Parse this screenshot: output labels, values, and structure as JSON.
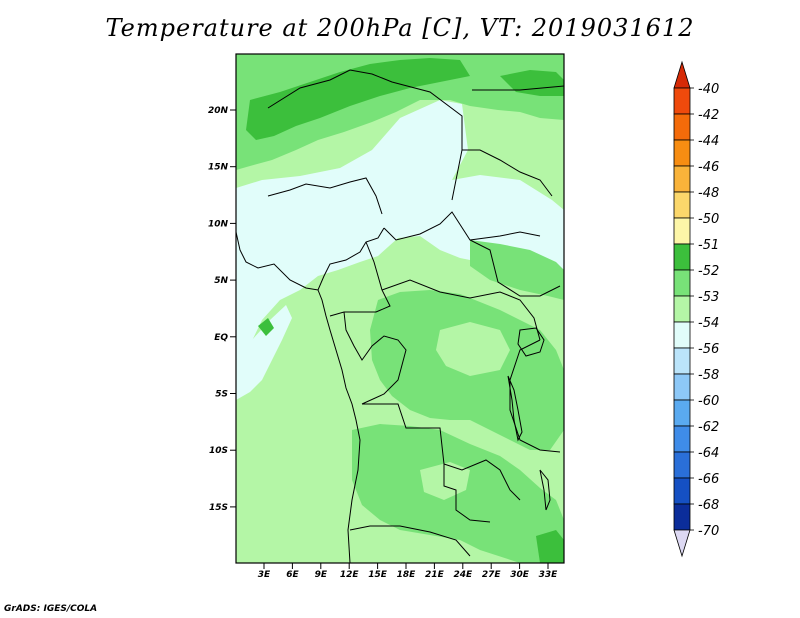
{
  "title": "Temperature at 200hPa [C], VT: 2019031612",
  "footer": "GrADS: IGES/COLA",
  "lat_ticks": [
    "20N",
    "15N",
    "10N",
    "5N",
    "EQ",
    "5S",
    "10S",
    "15S"
  ],
  "lon_ticks": [
    "3E",
    "6E",
    "9E",
    "12E",
    "15E",
    "18E",
    "21E",
    "24E",
    "27E",
    "30E",
    "33E"
  ],
  "colorbar": {
    "labels": [
      "-40",
      "-42",
      "-44",
      "-46",
      "-48",
      "-50",
      "-51",
      "-52",
      "-53",
      "-54",
      "-56",
      "-58",
      "-60",
      "-62",
      "-64",
      "-66",
      "-68",
      "-70"
    ],
    "colors": [
      "#d62a06",
      "#ef4a0c",
      "#f46b0a",
      "#f78d12",
      "#f9b33a",
      "#fbd76b",
      "#fdf6a8",
      "#3cbf3c",
      "#78e278",
      "#b4f6a6",
      "#e1fdfa",
      "#bbe4fa",
      "#8dc8f7",
      "#5aaaf0",
      "#3f8ce8",
      "#2a6fd8",
      "#1550c3",
      "#0b2d9a",
      "#081d6a"
    ]
  },
  "map_colors": {
    "level_minus54": "#e1fdfa",
    "level_minus53": "#b4f6a6",
    "level_minus52": "#78e278",
    "level_minus51": "#3cbf3c"
  }
}
